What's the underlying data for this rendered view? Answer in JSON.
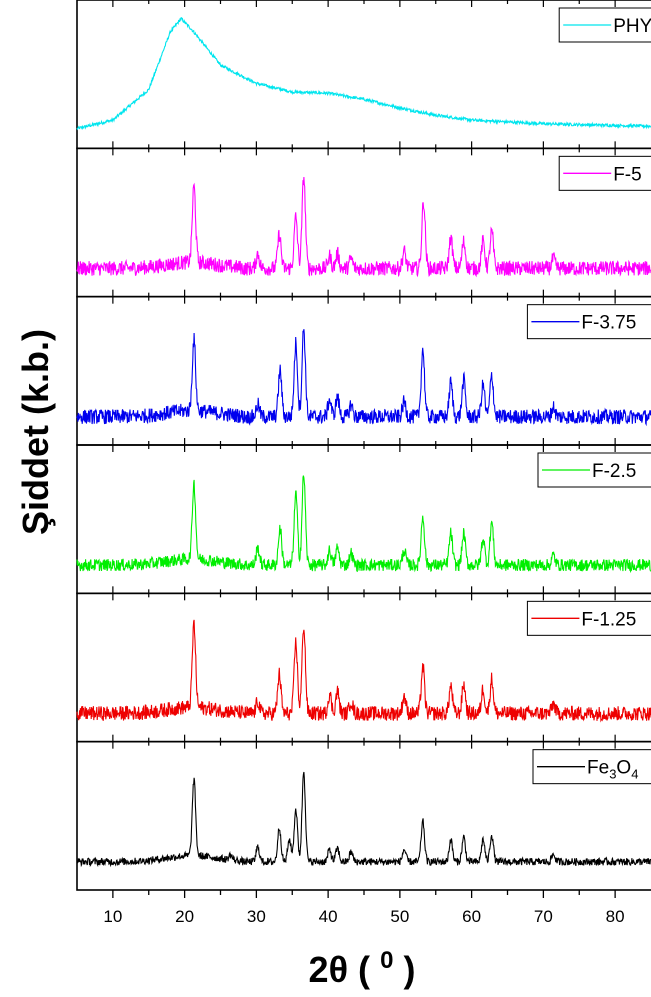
{
  "chart_data": {
    "type": "line",
    "ylabel": "Şiddet (k.b.)",
    "xlabel_main": "2θ",
    "xlabel_unit": "0",
    "xlim": [
      5,
      85
    ],
    "x_ticks": [
      10,
      20,
      30,
      40,
      50,
      60,
      70,
      80
    ],
    "grid": false,
    "legend_position": "top-right of each panel",
    "panels": [
      {
        "name": "PHY",
        "color": "#00E5EE",
        "noise": 0.012,
        "base": 0.1,
        "crystalline": false,
        "profile": [
          [
            5,
            0.03
          ],
          [
            10,
            0.1
          ],
          [
            15,
            0.35
          ],
          [
            18,
            0.82
          ],
          [
            19.5,
            0.93
          ],
          [
            21,
            0.84
          ],
          [
            25,
            0.55
          ],
          [
            30,
            0.4
          ],
          [
            35,
            0.33
          ],
          [
            40,
            0.32
          ],
          [
            45,
            0.27
          ],
          [
            50,
            0.2
          ],
          [
            55,
            0.14
          ],
          [
            60,
            0.1
          ],
          [
            70,
            0.07
          ],
          [
            85,
            0.05
          ]
        ],
        "peaks": []
      },
      {
        "name": "F-5",
        "color": "#FF00FF",
        "noise": 0.06,
        "base": 0.1,
        "crystalline": true,
        "peaks": [
          [
            21.3,
            0.62
          ],
          [
            30.2,
            0.12
          ],
          [
            33.2,
            0.28
          ],
          [
            35.5,
            0.42
          ],
          [
            36.6,
            0.75
          ],
          [
            40.2,
            0.1
          ],
          [
            41.3,
            0.12
          ],
          [
            43.2,
            0.08
          ],
          [
            50.6,
            0.14
          ],
          [
            53.3,
            0.55
          ],
          [
            57.1,
            0.25
          ],
          [
            58.9,
            0.22
          ],
          [
            61.6,
            0.22
          ],
          [
            62.8,
            0.3
          ],
          [
            71.4,
            0.08
          ]
        ]
      },
      {
        "name": "F-3.75",
        "color": "#0000EE",
        "noise": 0.06,
        "base": 0.1,
        "crystalline": true,
        "peaks": [
          [
            21.3,
            0.58
          ],
          [
            30.2,
            0.1
          ],
          [
            33.3,
            0.38
          ],
          [
            35.5,
            0.6
          ],
          [
            36.6,
            0.72
          ],
          [
            40.2,
            0.14
          ],
          [
            41.3,
            0.16
          ],
          [
            43.2,
            0.1
          ],
          [
            50.6,
            0.12
          ],
          [
            53.2,
            0.55
          ],
          [
            57.1,
            0.28
          ],
          [
            58.9,
            0.3
          ],
          [
            61.6,
            0.26
          ],
          [
            62.8,
            0.34
          ],
          [
            71.4,
            0.08
          ]
        ]
      },
      {
        "name": "F-2.5",
        "color": "#00EE00",
        "noise": 0.05,
        "base": 0.1,
        "crystalline": true,
        "peaks": [
          [
            21.3,
            0.62
          ],
          [
            30.2,
            0.14
          ],
          [
            33.3,
            0.3
          ],
          [
            35.5,
            0.58
          ],
          [
            36.6,
            0.74
          ],
          [
            40.2,
            0.12
          ],
          [
            41.3,
            0.14
          ],
          [
            43.2,
            0.1
          ],
          [
            50.6,
            0.12
          ],
          [
            53.2,
            0.4
          ],
          [
            57.1,
            0.26
          ],
          [
            58.9,
            0.26
          ],
          [
            61.6,
            0.22
          ],
          [
            62.8,
            0.35
          ],
          [
            71.4,
            0.08
          ]
        ]
      },
      {
        "name": "F-1.25",
        "color": "#EE0000",
        "noise": 0.06,
        "base": 0.1,
        "crystalline": true,
        "peaks": [
          [
            21.3,
            0.68
          ],
          [
            30.2,
            0.1
          ],
          [
            33.2,
            0.32
          ],
          [
            35.5,
            0.58
          ],
          [
            36.6,
            0.72
          ],
          [
            40.2,
            0.16
          ],
          [
            41.3,
            0.18
          ],
          [
            43.2,
            0.1
          ],
          [
            50.6,
            0.14
          ],
          [
            53.2,
            0.38
          ],
          [
            57.1,
            0.22
          ],
          [
            58.9,
            0.24
          ],
          [
            61.6,
            0.2
          ],
          [
            62.8,
            0.28
          ],
          [
            71.4,
            0.08
          ]
        ]
      },
      {
        "name": "Fe3O4",
        "color": "#000000",
        "noise": 0.03,
        "base": 0.1,
        "crystalline": true,
        "peaks": [
          [
            21.3,
            0.62
          ],
          [
            26.4,
            0.04
          ],
          [
            30.2,
            0.12
          ],
          [
            33.2,
            0.28
          ],
          [
            34.6,
            0.18
          ],
          [
            35.5,
            0.43
          ],
          [
            36.6,
            0.74
          ],
          [
            40.2,
            0.1
          ],
          [
            41.3,
            0.11
          ],
          [
            43.2,
            0.08
          ],
          [
            50.6,
            0.1
          ],
          [
            53.2,
            0.33
          ],
          [
            57.1,
            0.18
          ],
          [
            58.9,
            0.2
          ],
          [
            61.6,
            0.18
          ],
          [
            62.8,
            0.22
          ],
          [
            71.4,
            0.06
          ]
        ]
      }
    ],
    "legend_labels": [
      "PHY",
      "F-5",
      "F-3.75",
      "F-2.5",
      "F-1.25",
      "Fe"
    ],
    "fe3o4_sub_a": "3",
    "fe3o4_mid": "O",
    "fe3o4_sub_b": "4"
  }
}
